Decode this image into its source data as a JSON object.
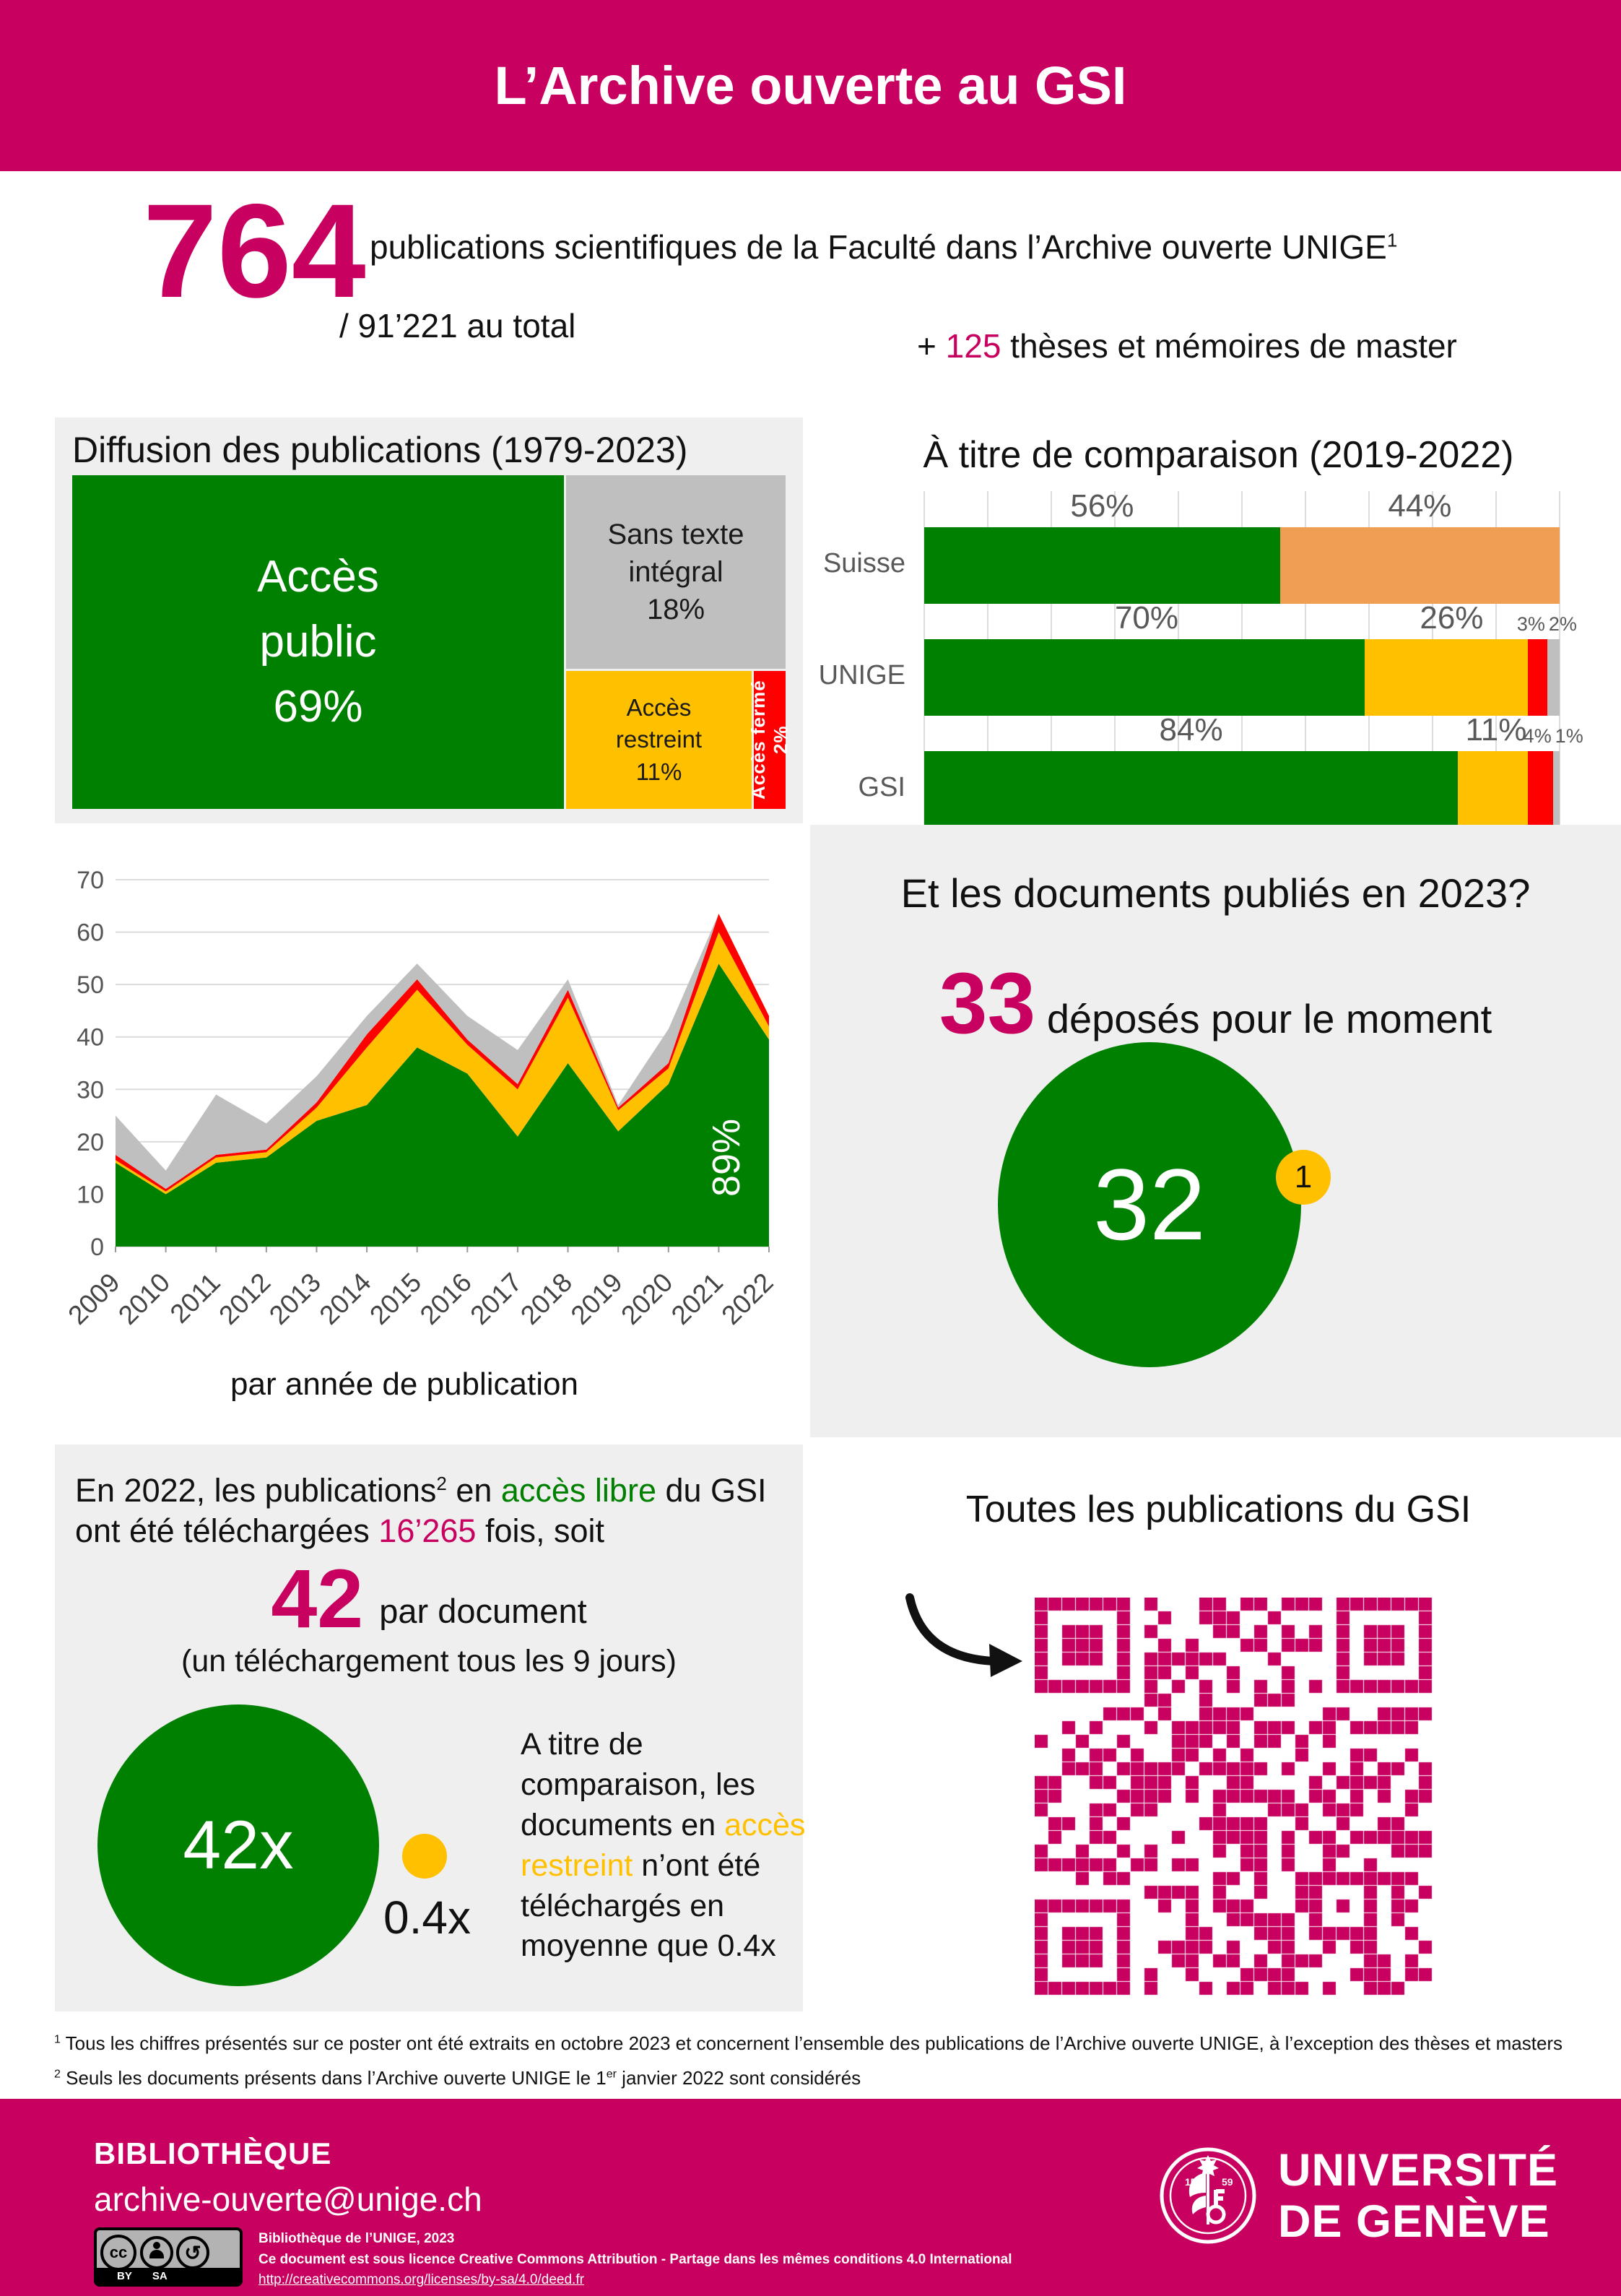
{
  "colors": {
    "brand": "#C8005F",
    "green": "#008000",
    "yellow": "#FFC000",
    "red": "#FF0000",
    "gray": "#BFBFBF",
    "orange": "#F09E53",
    "panel": "#EFEFEF"
  },
  "header": {
    "title": "L’Archive ouverte au GSI"
  },
  "stats": {
    "number": "764",
    "description": "publications scientifiques de la Faculté dans l’Archive ouverte UNIGE",
    "description_sup": "1",
    "total": "/ 91’221 au total",
    "plus": "+ ",
    "theses_number": "125",
    "theses_text": " thèses et mémoires de master"
  },
  "docs2023": {
    "title": "Et les documents publiés en 2023?",
    "number": "33",
    "text": " déposés pour le moment",
    "circle": "32",
    "badge": "1"
  },
  "downloads": {
    "p1a": "En 2022, les publications",
    "p1sup": "2",
    "p1b": " en ",
    "p1green": "accès libre",
    "p1c": " du GSI ont été téléchargées ",
    "p1num": "16’265",
    "p1d": " fois, soit",
    "big": "42",
    "per": "par document",
    "note": "(un téléchargement tous les 9 jours)",
    "circle": "42x",
    "small": "0.4x",
    "side_a": "A titre de comparaison, les documents en ",
    "side_yellow": "accès restreint",
    "side_b": " n’ont été téléchargés en moyenne que 0.4x"
  },
  "qr": {
    "title": "Toutes les publications du GSI"
  },
  "footnotes": {
    "fn1sup": "1",
    "fn1": " Tous les chiffres présentés sur ce poster ont été extraits en octobre 2023 et concernent l’ensemble des publications de l’Archive ouverte UNIGE, à l’exception des thèses et masters",
    "fn2sup": "2",
    "fn2a": " Seuls les documents présents dans l’Archive ouverte UNIGE le 1",
    "fn2sup2": "er",
    "fn2b": " janvier 2022 sont considérés"
  },
  "footer": {
    "library": "BIBLIOTHÈQUE",
    "email": "archive-ouverte@unige.ch",
    "cc_line1": "Bibliothèque de l’UNIGE, 2023",
    "cc_line2": "Ce document est sous licence Creative Commons Attribution - Partage dans les mêmes conditions 4.0 International",
    "cc_link": "http://creativecommons.org/licenses/by-sa/4.0/deed.fr",
    "cc_by": "BY",
    "cc_sa": "SA",
    "university_line1": "UNIVERSITÉ",
    "university_line2": "DE GENÈVE"
  },
  "chart_data": [
    {
      "id": "treemap",
      "type": "treemap",
      "title": "Diffusion des publications (1979-2023)",
      "items": [
        {
          "label": "Accès public",
          "pct_label": "69%",
          "value": 69,
          "color": "#008000"
        },
        {
          "label": "Sans texte intégral",
          "pct_label": "18%",
          "value": 18,
          "color": "#BFBFBF"
        },
        {
          "label": "Accès restreint",
          "pct_label": "11%",
          "value": 11,
          "color": "#FFC000"
        },
        {
          "label": "Accès fermé 2%",
          "value": 2,
          "color": "#FF0000"
        }
      ]
    },
    {
      "id": "comparison",
      "type": "bar",
      "stacked": true,
      "orientation": "horizontal",
      "title": "À titre de comparaison (2019-2022)",
      "xlim": [
        0,
        100
      ],
      "grid": true,
      "categories": [
        "Suisse",
        "UNIGE",
        "GSI"
      ],
      "rows": [
        {
          "label": "Suisse",
          "segments": [
            {
              "v": 56,
              "c": "green"
            },
            {
              "v": 44,
              "c": "orange"
            }
          ],
          "labels": [
            {
              "t": "56%",
              "x": 0.28,
              "small": false
            },
            {
              "t": "44%",
              "x": 0.78,
              "small": false
            }
          ]
        },
        {
          "label": "UNIGE",
          "segments": [
            {
              "v": 70,
              "c": "green"
            },
            {
              "v": 26,
              "c": "yellow"
            },
            {
              "v": 3,
              "c": "red"
            },
            {
              "v": 2,
              "c": "gray"
            }
          ],
          "labels": [
            {
              "t": "70%",
              "x": 0.35,
              "small": false
            },
            {
              "t": "26%",
              "x": 0.83,
              "small": false
            },
            {
              "t": "3%",
              "x": 0.955,
              "small": true
            },
            {
              "t": "2%",
              "x": 1.005,
              "small": true
            }
          ]
        },
        {
          "label": "GSI",
          "segments": [
            {
              "v": 84,
              "c": "green"
            },
            {
              "v": 11,
              "c": "yellow"
            },
            {
              "v": 4,
              "c": "red"
            },
            {
              "v": 1,
              "c": "gray"
            }
          ],
          "labels": [
            {
              "t": "84%",
              "x": 0.42,
              "small": false
            },
            {
              "t": "11%",
              "x": 0.9,
              "small": false
            },
            {
              "t": "4%",
              "x": 0.965,
              "small": true
            },
            {
              "t": "1%",
              "x": 1.015,
              "small": true
            }
          ]
        }
      ]
    },
    {
      "id": "by-year",
      "type": "area",
      "stacked": true,
      "x": [
        "2009",
        "2010",
        "2011",
        "2012",
        "2013",
        "2014",
        "2015",
        "2016",
        "2017",
        "2018",
        "2019",
        "2020",
        "2021",
        "2022"
      ],
      "xlabel": "par année de publication",
      "ylim": [
        0,
        70
      ],
      "ytick_step": 10,
      "grid": true,
      "series": [
        {
          "name": "Accès public",
          "color": "#008000",
          "values": [
            16,
            10,
            16,
            17,
            24,
            27,
            38,
            33,
            21,
            35,
            22,
            31,
            54,
            39.5
          ]
        },
        {
          "name": "Accès restreint",
          "color": "#FFC000",
          "values": [
            0.5,
            0.5,
            1,
            1,
            2.5,
            11,
            11,
            5.5,
            9,
            12.5,
            4,
            3,
            6,
            2.5
          ]
        },
        {
          "name": "Accès fermé",
          "color": "#FF0000",
          "values": [
            1,
            0.5,
            0.5,
            0.5,
            1,
            2.5,
            2,
            1,
            1,
            1.5,
            0.5,
            1,
            3.5,
            2
          ]
        },
        {
          "name": "Sans texte intégral",
          "color": "#BFBFBF",
          "values": [
            7.5,
            3.5,
            11.5,
            5,
            5,
            3.5,
            3,
            4.5,
            6.5,
            2,
            0.5,
            6.5,
            0,
            0
          ]
        }
      ],
      "annotation": {
        "text": "89%",
        "color": "#ffffff"
      }
    }
  ]
}
